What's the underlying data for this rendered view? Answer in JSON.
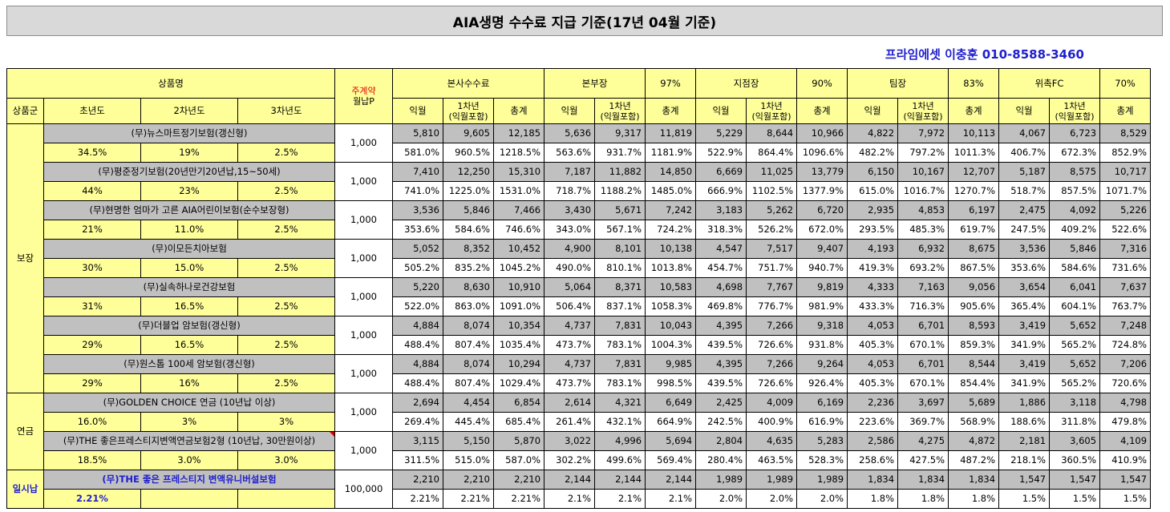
{
  "title": "AIA생명 수수료 지급 기준(17년 04월 기준)",
  "agent": "프라임에셋 이충훈 010-8588-3460",
  "header": {
    "product_name": "상품명",
    "main_contract": "주계약",
    "monthly_premium": "월납P",
    "product_group": "상품군",
    "year1": "초년도",
    "year2": "2차년도",
    "year3": "3차년도",
    "groups": [
      {
        "name": "본사수수료",
        "pct": ""
      },
      {
        "name": "본부장",
        "pct": "97%"
      },
      {
        "name": "지점장",
        "pct": "90%"
      },
      {
        "name": "팀장",
        "pct": "83%"
      },
      {
        "name": "위촉FC",
        "pct": "70%"
      }
    ],
    "sub_labels": {
      "month": "익월",
      "year1_line1": "1차년",
      "year1_line2": "(익월포함)",
      "total": "총계"
    }
  },
  "categories": [
    {
      "name": "보장",
      "rows": 7
    },
    {
      "name": "연금",
      "rows": 2
    },
    {
      "name": "일시납",
      "rows": 1
    }
  ],
  "products": [
    {
      "name": "(무)뉴스마트정기보험(갱신형)",
      "rates": [
        "34.5%",
        "19%",
        "2.5%"
      ],
      "premium": "1,000",
      "amounts": [
        "5,810",
        "9,605",
        "12,185",
        "5,636",
        "9,317",
        "11,819",
        "5,229",
        "8,644",
        "10,966",
        "4,822",
        "7,972",
        "10,113",
        "4,067",
        "6,723",
        "8,529"
      ],
      "pcts": [
        "581.0%",
        "960.5%",
        "1218.5%",
        "563.6%",
        "931.7%",
        "1181.9%",
        "522.9%",
        "864.4%",
        "1096.6%",
        "482.2%",
        "797.2%",
        "1011.3%",
        "406.7%",
        "672.3%",
        "852.9%"
      ]
    },
    {
      "name": "(무)평준정기보험(20년만기20년납,15~50세)",
      "rates": [
        "44%",
        "23%",
        "2.5%"
      ],
      "premium": "1,000",
      "amounts": [
        "7,410",
        "12,250",
        "15,310",
        "7,187",
        "11,882",
        "14,850",
        "6,669",
        "11,025",
        "13,779",
        "6,150",
        "10,167",
        "12,707",
        "5,187",
        "8,575",
        "10,717"
      ],
      "pcts": [
        "741.0%",
        "1225.0%",
        "1531.0%",
        "718.7%",
        "1188.2%",
        "1485.0%",
        "666.9%",
        "1102.5%",
        "1377.9%",
        "615.0%",
        "1016.7%",
        "1270.7%",
        "518.7%",
        "857.5%",
        "1071.7%"
      ]
    },
    {
      "name": "(무)현명한 엄마가 고른 AIA어린이보험(순수보장형)",
      "rates": [
        "21%",
        "11.0%",
        "2.5%"
      ],
      "premium": "1,000",
      "amounts": [
        "3,536",
        "5,846",
        "7,466",
        "3,430",
        "5,671",
        "7,242",
        "3,183",
        "5,262",
        "6,720",
        "2,935",
        "4,853",
        "6,197",
        "2,475",
        "4,092",
        "5,226"
      ],
      "pcts": [
        "353.6%",
        "584.6%",
        "746.6%",
        "343.0%",
        "567.1%",
        "724.2%",
        "318.3%",
        "526.2%",
        "672.0%",
        "293.5%",
        "485.3%",
        "619.7%",
        "247.5%",
        "409.2%",
        "522.6%"
      ]
    },
    {
      "name": "(무)이모든치아보험",
      "rates": [
        "30%",
        "15.0%",
        "2.5%"
      ],
      "premium": "1,000",
      "amounts": [
        "5,052",
        "8,352",
        "10,452",
        "4,900",
        "8,101",
        "10,138",
        "4,547",
        "7,517",
        "9,407",
        "4,193",
        "6,932",
        "8,675",
        "3,536",
        "5,846",
        "7,316"
      ],
      "pcts": [
        "505.2%",
        "835.2%",
        "1045.2%",
        "490.0%",
        "810.1%",
        "1013.8%",
        "454.7%",
        "751.7%",
        "940.7%",
        "419.3%",
        "693.2%",
        "867.5%",
        "353.6%",
        "584.6%",
        "731.6%"
      ]
    },
    {
      "name": "(무)실속하나로건강보험",
      "rates": [
        "31%",
        "16.5%",
        "2.5%"
      ],
      "premium": "1,000",
      "amounts": [
        "5,220",
        "8,630",
        "10,910",
        "5,064",
        "8,371",
        "10,583",
        "4,698",
        "7,767",
        "9,819",
        "4,333",
        "7,163",
        "9,056",
        "3,654",
        "6,041",
        "7,637"
      ],
      "pcts": [
        "522.0%",
        "863.0%",
        "1091.0%",
        "506.4%",
        "837.1%",
        "1058.3%",
        "469.8%",
        "776.7%",
        "981.9%",
        "433.3%",
        "716.3%",
        "905.6%",
        "365.4%",
        "604.1%",
        "763.7%"
      ]
    },
    {
      "name": "(무)더블업 암보험(갱신형)",
      "rates": [
        "29%",
        "16.5%",
        "2.5%"
      ],
      "premium": "1,000",
      "amounts": [
        "4,884",
        "8,074",
        "10,354",
        "4,737",
        "7,831",
        "10,043",
        "4,395",
        "7,266",
        "9,318",
        "4,053",
        "6,701",
        "8,593",
        "3,419",
        "5,652",
        "7,248"
      ],
      "pcts": [
        "488.4%",
        "807.4%",
        "1035.4%",
        "473.7%",
        "783.1%",
        "1004.3%",
        "439.5%",
        "726.6%",
        "931.8%",
        "405.3%",
        "670.1%",
        "859.3%",
        "341.9%",
        "565.2%",
        "724.8%"
      ]
    },
    {
      "name": "(무)원스톱 100세 암보험(갱신형)",
      "rates": [
        "29%",
        "16%",
        "2.5%"
      ],
      "premium": "1,000",
      "amounts": [
        "4,884",
        "8,074",
        "10,294",
        "4,737",
        "7,831",
        "9,985",
        "4,395",
        "7,266",
        "9,264",
        "4,053",
        "6,701",
        "8,544",
        "3,419",
        "5,652",
        "7,206"
      ],
      "pcts": [
        "488.4%",
        "807.4%",
        "1029.4%",
        "473.7%",
        "783.1%",
        "998.5%",
        "439.5%",
        "726.6%",
        "926.4%",
        "405.3%",
        "670.1%",
        "854.4%",
        "341.9%",
        "565.2%",
        "720.6%"
      ]
    },
    {
      "name": "(무)GOLDEN CHOICE 연금 (10년납 이상)",
      "rates": [
        "16.0%",
        "3%",
        "3%"
      ],
      "premium": "1,000",
      "amounts": [
        "2,694",
        "4,454",
        "6,854",
        "2,614",
        "4,321",
        "6,649",
        "2,425",
        "4,009",
        "6,169",
        "2,236",
        "3,697",
        "5,689",
        "1,886",
        "3,118",
        "4,798"
      ],
      "pcts": [
        "269.4%",
        "445.4%",
        "685.4%",
        "261.4%",
        "432.1%",
        "664.9%",
        "242.5%",
        "400.9%",
        "616.9%",
        "223.6%",
        "369.7%",
        "568.9%",
        "188.6%",
        "311.8%",
        "479.8%"
      ]
    },
    {
      "name": "(무)THE 좋은프레스티지변액연금보험2형 (10년납, 30만원이상)",
      "rates": [
        "18.5%",
        "3.0%",
        "3.0%"
      ],
      "premium": "1,000",
      "amounts": [
        "3,115",
        "5,150",
        "5,870",
        "3,022",
        "4,996",
        "5,694",
        "2,804",
        "4,635",
        "5,283",
        "2,586",
        "4,275",
        "4,872",
        "2,181",
        "3,605",
        "4,109"
      ],
      "pcts": [
        "311.5%",
        "515.0%",
        "587.0%",
        "302.2%",
        "499.6%",
        "569.4%",
        "280.4%",
        "463.5%",
        "528.3%",
        "258.6%",
        "427.5%",
        "487.2%",
        "218.1%",
        "360.5%",
        "410.9%"
      ]
    },
    {
      "name": "(무)THE 좋은 프레스티지 변액유니버설보험",
      "rates": [
        "2.21%",
        "",
        ""
      ],
      "premium": "100,000",
      "amounts": [
        "2,210",
        "2,210",
        "2,210",
        "2,144",
        "2,144",
        "2,144",
        "1,989",
        "1,989",
        "1,989",
        "1,834",
        "1,834",
        "1,834",
        "1,547",
        "1,547",
        "1,547"
      ],
      "pcts": [
        "2.21%",
        "2.21%",
        "2.21%",
        "2.1%",
        "2.1%",
        "2.1%",
        "2.0%",
        "2.0%",
        "2.0%",
        "1.8%",
        "1.8%",
        "1.8%",
        "1.5%",
        "1.5%",
        "1.5%"
      ]
    }
  ]
}
